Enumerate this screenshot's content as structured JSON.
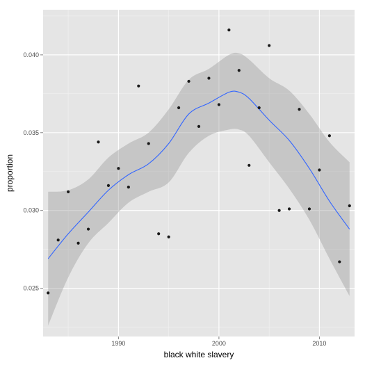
{
  "chart_data": {
    "type": "scatter",
    "title": "",
    "xlabel": "black white slavery",
    "ylabel": "proportion",
    "xlim": [
      1982.5,
      2013.5
    ],
    "ylim": [
      0.0219,
      0.0429
    ],
    "x_ticks": [
      1990,
      2000,
      2010
    ],
    "x_tick_labels": [
      "1990",
      "2000",
      "2010"
    ],
    "y_ticks": [
      0.025,
      0.03,
      0.035,
      0.04
    ],
    "y_tick_labels": [
      "0.025",
      "0.030",
      "0.035",
      "0.040"
    ],
    "grid": true,
    "legend": "none",
    "colors": {
      "panel_background": "#e5e5e5",
      "grid_major": "#ffffff",
      "grid_minor": "#f2f2f2",
      "points": "#1a1a1a",
      "smooth_line": "#3366ff",
      "confidence_band": "#999999",
      "tick_text": "#4d4d4d",
      "axis_title": "#000000"
    },
    "points": [
      {
        "x": 1983,
        "y": 0.0247
      },
      {
        "x": 1984,
        "y": 0.0281
      },
      {
        "x": 1985,
        "y": 0.0312
      },
      {
        "x": 1986,
        "y": 0.0279
      },
      {
        "x": 1987,
        "y": 0.0288
      },
      {
        "x": 1988,
        "y": 0.0344
      },
      {
        "x": 1989,
        "y": 0.0316
      },
      {
        "x": 1990,
        "y": 0.0327
      },
      {
        "x": 1991,
        "y": 0.0315
      },
      {
        "x": 1992,
        "y": 0.038
      },
      {
        "x": 1993,
        "y": 0.0343
      },
      {
        "x": 1994,
        "y": 0.0285
      },
      {
        "x": 1995,
        "y": 0.0283
      },
      {
        "x": 1996,
        "y": 0.0366
      },
      {
        "x": 1997,
        "y": 0.0383
      },
      {
        "x": 1998,
        "y": 0.0354
      },
      {
        "x": 1999,
        "y": 0.0385
      },
      {
        "x": 2000,
        "y": 0.0368
      },
      {
        "x": 2001,
        "y": 0.0416
      },
      {
        "x": 2002,
        "y": 0.039
      },
      {
        "x": 2003,
        "y": 0.0329
      },
      {
        "x": 2004,
        "y": 0.0366
      },
      {
        "x": 2005,
        "y": 0.0406
      },
      {
        "x": 2006,
        "y": 0.03
      },
      {
        "x": 2007,
        "y": 0.0301
      },
      {
        "x": 2008,
        "y": 0.0365
      },
      {
        "x": 2009,
        "y": 0.0301
      },
      {
        "x": 2010,
        "y": 0.0326
      },
      {
        "x": 2011,
        "y": 0.0348
      },
      {
        "x": 2012,
        "y": 0.0267
      },
      {
        "x": 2013,
        "y": 0.0303
      }
    ],
    "smooth": [
      {
        "x": 1983,
        "y": 0.0269,
        "lo": 0.0226,
        "hi": 0.0312
      },
      {
        "x": 1985,
        "y": 0.0285,
        "lo": 0.0257,
        "hi": 0.0313
      },
      {
        "x": 1987,
        "y": 0.0299,
        "lo": 0.0279,
        "hi": 0.032
      },
      {
        "x": 1989,
        "y": 0.0313,
        "lo": 0.0292,
        "hi": 0.0334
      },
      {
        "x": 1991,
        "y": 0.0323,
        "lo": 0.0305,
        "hi": 0.0343
      },
      {
        "x": 1993,
        "y": 0.033,
        "lo": 0.0312,
        "hi": 0.035
      },
      {
        "x": 1995,
        "y": 0.0343,
        "lo": 0.0318,
        "hi": 0.0365
      },
      {
        "x": 1997,
        "y": 0.0362,
        "lo": 0.0337,
        "hi": 0.0384
      },
      {
        "x": 1999,
        "y": 0.0369,
        "lo": 0.0348,
        "hi": 0.0391
      },
      {
        "x": 2001,
        "y": 0.0376,
        "lo": 0.0352,
        "hi": 0.04
      },
      {
        "x": 2002,
        "y": 0.0376,
        "lo": 0.0352,
        "hi": 0.0401
      },
      {
        "x": 2003,
        "y": 0.0372,
        "lo": 0.0348,
        "hi": 0.0397
      },
      {
        "x": 2005,
        "y": 0.0358,
        "lo": 0.0331,
        "hi": 0.0385
      },
      {
        "x": 2007,
        "y": 0.0345,
        "lo": 0.0314,
        "hi": 0.0377
      },
      {
        "x": 2009,
        "y": 0.0327,
        "lo": 0.0294,
        "hi": 0.0362
      },
      {
        "x": 2011,
        "y": 0.0306,
        "lo": 0.0269,
        "hi": 0.0344
      },
      {
        "x": 2013,
        "y": 0.0288,
        "lo": 0.0245,
        "hi": 0.0331
      }
    ]
  }
}
